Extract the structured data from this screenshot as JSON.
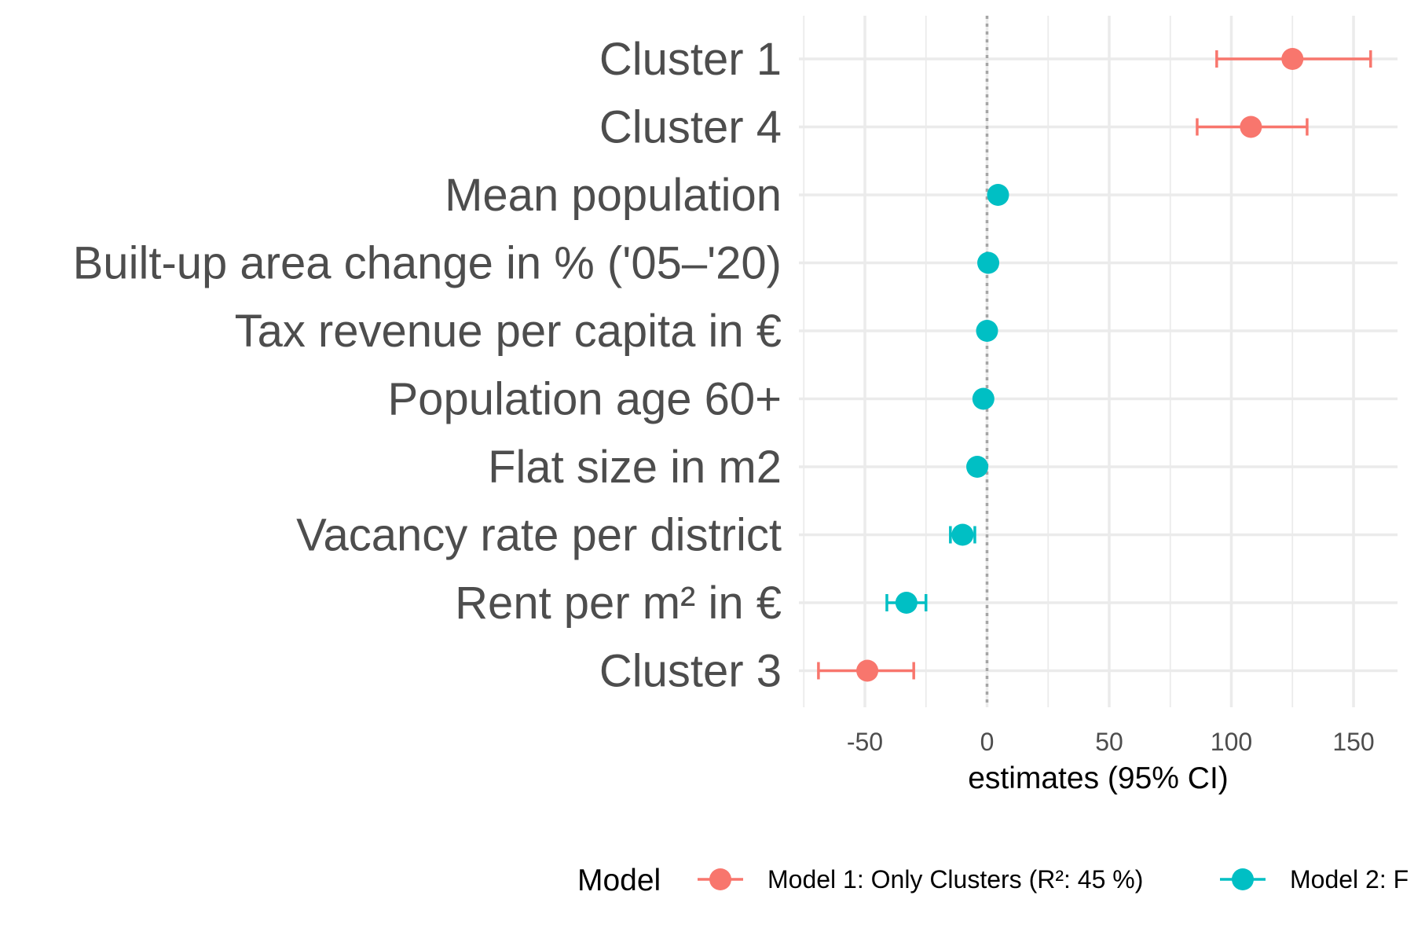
{
  "chart_data": {
    "type": "scatter",
    "subtype": "coefficient-plot",
    "title": "",
    "xlabel": "estimates (95% CI)",
    "ylabel": "",
    "xlim": [
      -77,
      168
    ],
    "xticks": [
      -50,
      0,
      50,
      100,
      150
    ],
    "xtick_labels": [
      "-50",
      "0",
      "50",
      "100",
      "150"
    ],
    "reference_line": 0,
    "grid": true,
    "legend_title": "Model",
    "legend_position": "bottom",
    "categories": [
      "Cluster 1",
      "Cluster 4",
      "Mean population",
      "Built-up area change in % ('05–'20)",
      "Tax revenue per capita in €",
      "Population age 60+",
      "Flat size in m2",
      "Vacancy rate per district",
      "Rent per m² in €",
      "Cluster 3"
    ],
    "series": [
      {
        "name": "Model 1: Only Clusters (R²: 45 %)",
        "color": "#F8766D",
        "points": [
          {
            "category": "Cluster 1",
            "estimate": 125,
            "ci_low": 94,
            "ci_high": 157
          },
          {
            "category": "Cluster 4",
            "estimate": 108,
            "ci_low": 86,
            "ci_high": 131
          },
          {
            "category": "Cluster 3",
            "estimate": -49,
            "ci_low": -69,
            "ci_high": -30
          }
        ]
      },
      {
        "name": "Model 2: F",
        "color": "#00BFC4",
        "points": [
          {
            "category": "Mean population",
            "estimate": 4.5,
            "ci_low": 3.5,
            "ci_high": 5.5
          },
          {
            "category": "Built-up area change in % ('05–'20)",
            "estimate": 0.5,
            "ci_low": -0.5,
            "ci_high": 1.5
          },
          {
            "category": "Tax revenue per capita in €",
            "estimate": 0,
            "ci_low": -1,
            "ci_high": 1
          },
          {
            "category": "Population age 60+",
            "estimate": -1.5,
            "ci_low": -2.5,
            "ci_high": -0.5
          },
          {
            "category": "Flat size in m2",
            "estimate": -4,
            "ci_low": -5,
            "ci_high": -3
          },
          {
            "category": "Vacancy rate per district",
            "estimate": -10,
            "ci_low": -15,
            "ci_high": -5
          },
          {
            "category": "Rent per m² in €",
            "estimate": -33,
            "ci_low": -41,
            "ci_high": -25
          }
        ]
      }
    ]
  }
}
